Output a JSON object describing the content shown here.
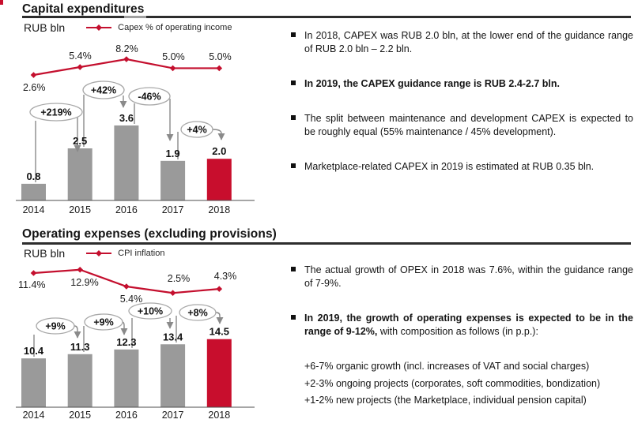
{
  "slide": {
    "accent_color": "#c80e2d",
    "bar_color": "#9a9a9a",
    "connector_color": "#8a8a8a"
  },
  "capex_section": {
    "title": "Capital expenditures",
    "unit_label": "RUB bln",
    "legend_label": "Capex % of operating income",
    "bullets": [
      {
        "text": "In 2018, CAPEX was RUB 2.0 bln, at the lower end of the guidance range of RUB 2.0 bln – 2.2 bln.",
        "bold": false
      },
      {
        "text": "In 2019, the CAPEX guidance range is RUB 2.4-2.7 bln.",
        "bold": true
      },
      {
        "text": "The split between maintenance and development CAPEX is expected to be roughly equal (55% maintenance / 45% development).",
        "bold": false
      },
      {
        "text": "Marketplace-related CAPEX in 2019 is estimated at RUB 0.35 bln.",
        "bold": false
      }
    ]
  },
  "opex_section": {
    "title": "Operating expenses (excluding provisions)",
    "unit_label": "RUB bln",
    "legend_label": "CPI inflation",
    "bullets": [
      {
        "text": "The actual growth of OPEX in 2018 was 7.6%, within the guidance range of 7-9%.",
        "bold": false
      }
    ],
    "composition_bullet": {
      "bold_part": "In 2019, the growth of operating expenses is expected to be in the range of 9-12%,",
      "normal_part": " with composition as follows (in p.p.):",
      "sub_items": [
        "+6-7% organic growth (incl. increases of VAT and social charges)",
        "+2-3% ongoing projects (corporates, soft commodities, bondization)",
        "+1-2% new projects (the Marketplace, individual pension capital)"
      ]
    }
  },
  "chart_data": [
    {
      "id": "capex",
      "type": "bar+line",
      "title": "Capital expenditures",
      "ylabel": "RUB bln",
      "categories": [
        "2014",
        "2015",
        "2016",
        "2017",
        "2018"
      ],
      "bars": [
        0.8,
        2.5,
        3.6,
        1.9,
        2.0
      ],
      "bar_labels": [
        "0.8",
        "2.5",
        "3.6",
        "1.9",
        "2.0"
      ],
      "highlight_index": 4,
      "line_series_name": "Capex % of operating income",
      "line_values": [
        2.6,
        5.4,
        8.2,
        5.0,
        5.0
      ],
      "line_labels": [
        "2.6%",
        "5.4%",
        "8.2%",
        "5.0%",
        "5.0%"
      ],
      "growth_labels": [
        "+219%",
        "+42%",
        "-46%",
        "+4%"
      ],
      "legend_position": "top",
      "grid": false,
      "colors": {
        "bar": "#9a9a9a",
        "highlight": "#c80e2d",
        "line": "#c40f2e"
      }
    },
    {
      "id": "opex",
      "type": "bar+line",
      "title": "Operating expenses (excluding provisions)",
      "ylabel": "RUB bln",
      "categories": [
        "2014",
        "2015",
        "2016",
        "2017",
        "2018"
      ],
      "bars": [
        10.4,
        11.3,
        12.3,
        13.4,
        14.5
      ],
      "bar_labels": [
        "10.4",
        "11.3",
        "12.3",
        "13.4",
        "14.5"
      ],
      "highlight_index": 4,
      "line_series_name": "CPI inflation",
      "line_values": [
        11.4,
        12.9,
        5.4,
        2.5,
        4.3
      ],
      "line_labels": [
        "11.4%",
        "12.9%",
        "5.4%",
        "2.5%",
        "4.3%"
      ],
      "growth_labels": [
        "+9%",
        "+9%",
        "+10%",
        "+8%"
      ],
      "legend_position": "top",
      "grid": false,
      "colors": {
        "bar": "#9a9a9a",
        "highlight": "#c80e2d",
        "line": "#c40f2e"
      }
    }
  ]
}
